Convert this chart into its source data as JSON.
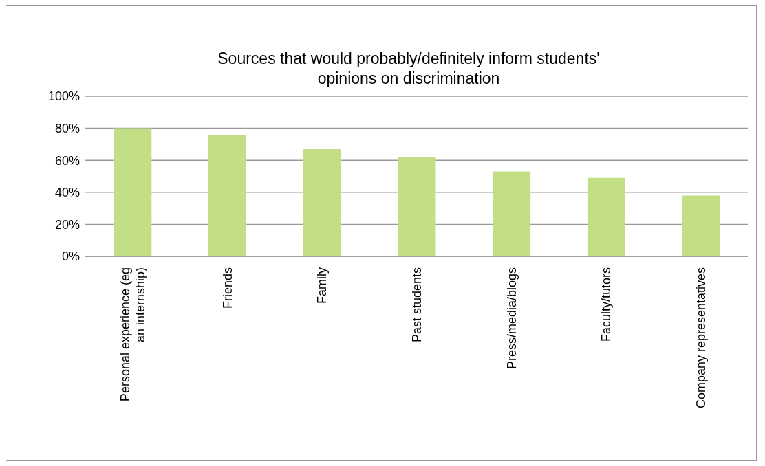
{
  "chart_data": {
    "type": "bar",
    "title": "Sources that would probably/definitely inform students' opinions on discrimination",
    "categories": [
      "Personal experience (eg an internship)",
      "Friends",
      "Family",
      "Past students",
      "Press/media/blogs",
      "Faculty/tutors",
      "Company representatives"
    ],
    "values": [
      80,
      76,
      67,
      62,
      53,
      49,
      38
    ],
    "color": "#c3df86",
    "ylim": [
      0,
      100
    ],
    "yticks": [
      {
        "value": 0,
        "label": "0%"
      },
      {
        "value": 20,
        "label": "20%"
      },
      {
        "value": 40,
        "label": "40%"
      },
      {
        "value": 60,
        "label": "60%"
      },
      {
        "value": 80,
        "label": "80%"
      },
      {
        "value": 100,
        "label": "100%"
      }
    ],
    "grid": "y",
    "legend": false
  }
}
